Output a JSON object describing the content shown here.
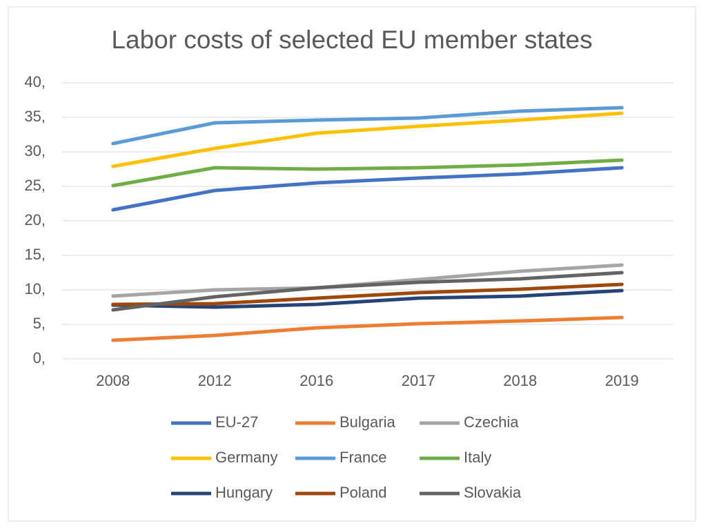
{
  "chart_data": {
    "type": "line",
    "title": "Labor costs of selected EU member states",
    "categories": [
      "2008",
      "2012",
      "2016",
      "2017",
      "2018",
      "2019"
    ],
    "series": [
      {
        "name": "EU-27",
        "color": "#4472c4",
        "values": [
          21.6,
          24.4,
          25.5,
          26.2,
          26.8,
          27.7
        ]
      },
      {
        "name": "Bulgaria",
        "color": "#ed7d31",
        "values": [
          2.7,
          3.4,
          4.5,
          5.1,
          5.5,
          6.0
        ]
      },
      {
        "name": "Czechia",
        "color": "#a5a5a5",
        "values": [
          9.1,
          10.0,
          10.3,
          11.5,
          12.7,
          13.6
        ]
      },
      {
        "name": "Germany",
        "color": "#ffc000",
        "values": [
          27.9,
          30.5,
          32.7,
          33.7,
          34.6,
          35.6
        ]
      },
      {
        "name": "France",
        "color": "#5b9bd5",
        "values": [
          31.2,
          34.2,
          34.6,
          34.9,
          35.9,
          36.4
        ]
      },
      {
        "name": "Italy",
        "color": "#70ad47",
        "values": [
          25.1,
          27.7,
          27.5,
          27.7,
          28.1,
          28.8
        ]
      },
      {
        "name": "Hungary",
        "color": "#264478",
        "values": [
          7.8,
          7.5,
          7.9,
          8.8,
          9.1,
          9.9
        ]
      },
      {
        "name": "Poland",
        "color": "#9e480e",
        "values": [
          7.9,
          8.0,
          8.8,
          9.6,
          10.1,
          10.8
        ]
      },
      {
        "name": "Slovakia",
        "color": "#636363",
        "values": [
          7.1,
          9.0,
          10.3,
          11.1,
          11.6,
          12.5
        ]
      }
    ],
    "ylim": [
      0,
      40
    ],
    "yticks": [
      {
        "value": 0,
        "label": "0,"
      },
      {
        "value": 5,
        "label": "5,"
      },
      {
        "value": 10,
        "label": "10,"
      },
      {
        "value": 15,
        "label": "15,"
      },
      {
        "value": 20,
        "label": "20,"
      },
      {
        "value": 25,
        "label": "25,"
      },
      {
        "value": 30,
        "label": "30,"
      },
      {
        "value": 35,
        "label": "35,"
      },
      {
        "value": 40,
        "label": "40,"
      }
    ],
    "grid": true,
    "legend": "bottom"
  }
}
